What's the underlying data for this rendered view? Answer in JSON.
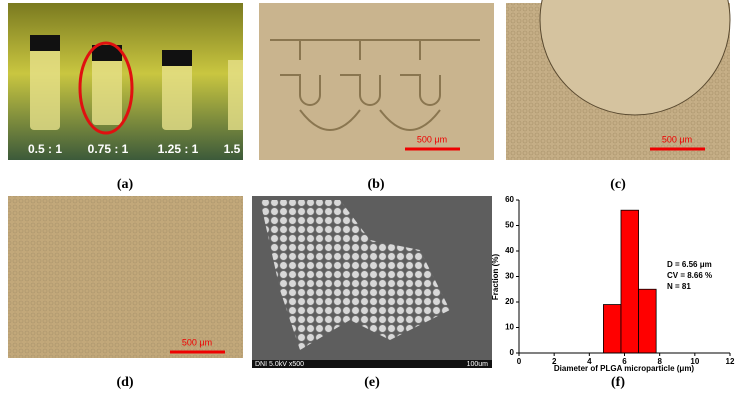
{
  "panels": {
    "labels": [
      "(a)",
      "(b)",
      "(c)",
      "(d)",
      "(e)",
      "(f)"
    ],
    "ratios": [
      "0.5 : 1",
      "0.75 : 1",
      "1.25 : 1",
      "1.5"
    ],
    "scale_bars": [
      "500 μm",
      "500 μm",
      "500 μm"
    ],
    "sem_info": "DNI 5.0kV x500",
    "sem_scale": "100um"
  },
  "chart_data": {
    "type": "histogram",
    "bins": [
      4.8,
      5.8,
      6.8,
      7.8
    ],
    "values": [
      19,
      56,
      25
    ],
    "color": "#ff0000",
    "xlabel": "Diameter of PLGA microparticle (μm)",
    "ylabel": "Fraction (%)",
    "xlim": [
      0,
      12
    ],
    "xticks": [
      0,
      2,
      4,
      6,
      8,
      10,
      12
    ],
    "ylim": [
      0,
      60
    ],
    "yticks": [
      0,
      10,
      20,
      30,
      40,
      50,
      60
    ],
    "annotations": [
      "D = 6.56 μm",
      "CV = 8.66 %",
      "N = 81"
    ]
  }
}
